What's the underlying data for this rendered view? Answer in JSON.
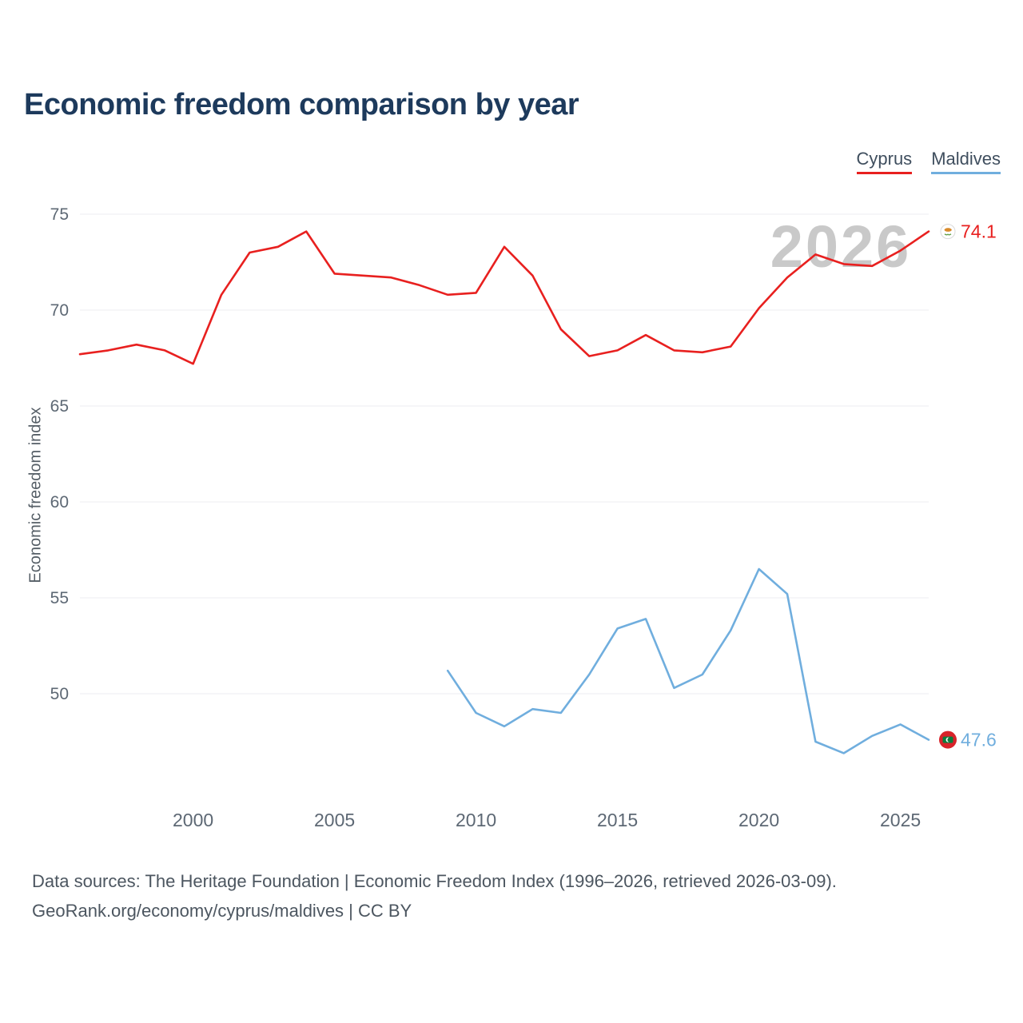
{
  "title": "Economic freedom comparison by year",
  "watermark": "2026",
  "legend": [
    {
      "label": "Cyprus",
      "color": "#e8201f"
    },
    {
      "label": "Maldives",
      "color": "#70aede"
    }
  ],
  "footer": {
    "line1": "Data sources: The Heritage Foundation | Economic Freedom Index (1996–2026, retrieved 2026-03-09).",
    "line2": "GeoRank.org/economy/cyprus/maldives | CC BY"
  },
  "chart_data": {
    "type": "line",
    "title": "Economic freedom comparison by year",
    "xlabel": "",
    "ylabel": "Economic freedom index",
    "yticks": [
      50,
      55,
      60,
      65,
      70,
      75
    ],
    "xticks": [
      2000,
      2005,
      2010,
      2015,
      2020,
      2025
    ],
    "xlim": [
      1996,
      2026
    ],
    "ylim": [
      46,
      76
    ],
    "grid": true,
    "legend_position": "top-right",
    "series": [
      {
        "name": "Cyprus",
        "color": "#e8201f",
        "end_label": "74.1",
        "x": [
          1996,
          1997,
          1998,
          1999,
          2000,
          2001,
          2002,
          2003,
          2004,
          2005,
          2006,
          2007,
          2008,
          2009,
          2010,
          2011,
          2012,
          2013,
          2014,
          2015,
          2016,
          2017,
          2018,
          2019,
          2020,
          2021,
          2022,
          2023,
          2024,
          2025,
          2026
        ],
        "values": [
          67.7,
          67.9,
          68.2,
          67.9,
          67.2,
          70.8,
          73.0,
          73.3,
          74.1,
          71.9,
          71.8,
          71.7,
          71.3,
          70.8,
          70.9,
          73.3,
          71.8,
          69.0,
          67.6,
          67.9,
          68.7,
          67.9,
          67.8,
          68.1,
          70.1,
          71.7,
          72.9,
          72.4,
          72.3,
          73.1,
          74.1
        ]
      },
      {
        "name": "Maldives",
        "color": "#70aede",
        "end_label": "47.6",
        "x": [
          2009,
          2010,
          2011,
          2012,
          2013,
          2014,
          2015,
          2016,
          2017,
          2018,
          2019,
          2020,
          2021,
          2022,
          2023,
          2024,
          2025,
          2026
        ],
        "values": [
          51.2,
          49.0,
          48.3,
          49.2,
          49.0,
          51.0,
          53.4,
          53.9,
          50.3,
          51.0,
          53.3,
          56.5,
          55.2,
          47.5,
          46.9,
          47.8,
          48.4,
          47.6
        ]
      }
    ]
  }
}
